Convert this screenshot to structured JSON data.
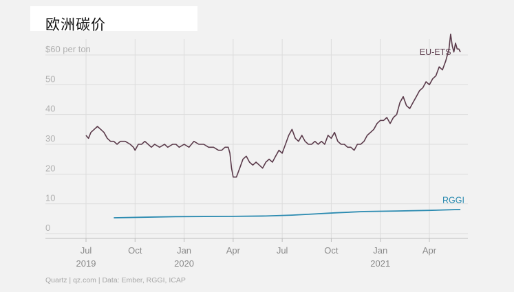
{
  "title": "欧洲碳价",
  "source": "Quartz | qz.com | Data: Ember, RGGI, ICAP",
  "chart_data": {
    "type": "line",
    "title": "欧洲碳价",
    "ylim": [
      0,
      65
    ],
    "y_ticks": [
      {
        "value": 0,
        "label": "0"
      },
      {
        "value": 10,
        "label": "10"
      },
      {
        "value": 20,
        "label": "20"
      },
      {
        "value": 30,
        "label": "30"
      },
      {
        "value": 40,
        "label": "40"
      },
      {
        "value": 50,
        "label": "50"
      },
      {
        "value": 60,
        "label": "$60 per ton"
      }
    ],
    "x_ticks": [
      {
        "x": 0,
        "label": "Jul",
        "year": "2019"
      },
      {
        "x": 3,
        "label": "Oct",
        "year": ""
      },
      {
        "x": 6,
        "label": "Jan",
        "year": "2020"
      },
      {
        "x": 9,
        "label": "Apr",
        "year": ""
      },
      {
        "x": 12,
        "label": "Jul",
        "year": ""
      },
      {
        "x": 15,
        "label": "Oct",
        "year": ""
      },
      {
        "x": 18,
        "label": "Jan",
        "year": "2021"
      },
      {
        "x": 21,
        "label": "Apr",
        "year": ""
      }
    ],
    "xlim": [
      -1,
      23.3
    ],
    "grid": true,
    "series": [
      {
        "name": "EU-ETS",
        "color": "#5a3a4a",
        "points": [
          [
            0.0,
            33
          ],
          [
            0.15,
            32
          ],
          [
            0.3,
            34
          ],
          [
            0.5,
            35
          ],
          [
            0.7,
            36
          ],
          [
            0.9,
            35
          ],
          [
            1.1,
            34
          ],
          [
            1.3,
            32
          ],
          [
            1.5,
            31
          ],
          [
            1.7,
            31
          ],
          [
            1.9,
            30
          ],
          [
            2.1,
            31
          ],
          [
            2.4,
            31
          ],
          [
            2.7,
            30
          ],
          [
            2.9,
            29
          ],
          [
            3.0,
            28
          ],
          [
            3.2,
            30
          ],
          [
            3.4,
            30
          ],
          [
            3.6,
            31
          ],
          [
            3.8,
            30
          ],
          [
            4.0,
            29
          ],
          [
            4.2,
            30
          ],
          [
            4.5,
            29
          ],
          [
            4.8,
            30
          ],
          [
            5.0,
            29
          ],
          [
            5.3,
            30
          ],
          [
            5.5,
            30
          ],
          [
            5.7,
            29
          ],
          [
            6.0,
            30
          ],
          [
            6.3,
            29
          ],
          [
            6.6,
            31
          ],
          [
            6.9,
            30
          ],
          [
            7.2,
            30
          ],
          [
            7.5,
            29
          ],
          [
            7.8,
            29
          ],
          [
            8.1,
            28
          ],
          [
            8.3,
            28
          ],
          [
            8.5,
            29
          ],
          [
            8.7,
            29
          ],
          [
            8.8,
            27
          ],
          [
            8.9,
            22
          ],
          [
            9.0,
            19
          ],
          [
            9.2,
            19
          ],
          [
            9.4,
            22
          ],
          [
            9.6,
            25
          ],
          [
            9.8,
            26
          ],
          [
            10.0,
            24
          ],
          [
            10.2,
            23
          ],
          [
            10.4,
            24
          ],
          [
            10.6,
            23
          ],
          [
            10.8,
            22
          ],
          [
            11.0,
            24
          ],
          [
            11.2,
            25
          ],
          [
            11.4,
            24
          ],
          [
            11.6,
            26
          ],
          [
            11.8,
            28
          ],
          [
            12.0,
            27
          ],
          [
            12.2,
            30
          ],
          [
            12.4,
            33
          ],
          [
            12.6,
            35
          ],
          [
            12.8,
            32
          ],
          [
            13.0,
            31
          ],
          [
            13.2,
            33
          ],
          [
            13.4,
            31
          ],
          [
            13.6,
            30
          ],
          [
            13.8,
            30
          ],
          [
            14.0,
            31
          ],
          [
            14.2,
            30
          ],
          [
            14.4,
            31
          ],
          [
            14.6,
            30
          ],
          [
            14.8,
            33
          ],
          [
            15.0,
            32
          ],
          [
            15.2,
            34
          ],
          [
            15.4,
            31
          ],
          [
            15.6,
            30
          ],
          [
            15.8,
            30
          ],
          [
            16.0,
            29
          ],
          [
            16.2,
            29
          ],
          [
            16.4,
            28
          ],
          [
            16.6,
            30
          ],
          [
            16.8,
            30
          ],
          [
            17.0,
            31
          ],
          [
            17.2,
            33
          ],
          [
            17.4,
            34
          ],
          [
            17.6,
            35
          ],
          [
            17.8,
            37
          ],
          [
            18.0,
            38
          ],
          [
            18.2,
            38
          ],
          [
            18.4,
            39
          ],
          [
            18.6,
            37
          ],
          [
            18.8,
            39
          ],
          [
            19.0,
            40
          ],
          [
            19.2,
            44
          ],
          [
            19.4,
            46
          ],
          [
            19.6,
            43
          ],
          [
            19.8,
            42
          ],
          [
            20.0,
            44
          ],
          [
            20.2,
            46
          ],
          [
            20.4,
            48
          ],
          [
            20.6,
            49
          ],
          [
            20.8,
            51
          ],
          [
            21.0,
            50
          ],
          [
            21.2,
            52
          ],
          [
            21.4,
            53
          ],
          [
            21.6,
            56
          ],
          [
            21.8,
            55
          ],
          [
            22.0,
            58
          ],
          [
            22.2,
            62
          ],
          [
            22.3,
            67
          ],
          [
            22.4,
            63
          ],
          [
            22.5,
            61
          ],
          [
            22.6,
            64
          ],
          [
            22.7,
            62
          ],
          [
            22.8,
            62
          ],
          [
            22.9,
            61
          ]
        ]
      },
      {
        "name": "RGGI",
        "color": "#2a8ab0",
        "points": [
          [
            1.7,
            5.3
          ],
          [
            3.5,
            5.5
          ],
          [
            5.5,
            5.7
          ],
          [
            9.0,
            5.8
          ],
          [
            11.0,
            5.9
          ],
          [
            12.6,
            6.2
          ],
          [
            14.0,
            6.6
          ],
          [
            15.3,
            7.0
          ],
          [
            17.0,
            7.4
          ],
          [
            19.0,
            7.6
          ],
          [
            21.0,
            7.8
          ],
          [
            22.9,
            8.1
          ]
        ]
      }
    ],
    "labels": [
      {
        "series": 0,
        "text": "EU-ETS",
        "x": 20.4,
        "y": 60
      },
      {
        "series": 1,
        "text": "RGGI",
        "x": 21.8,
        "y": 10.3
      }
    ]
  }
}
